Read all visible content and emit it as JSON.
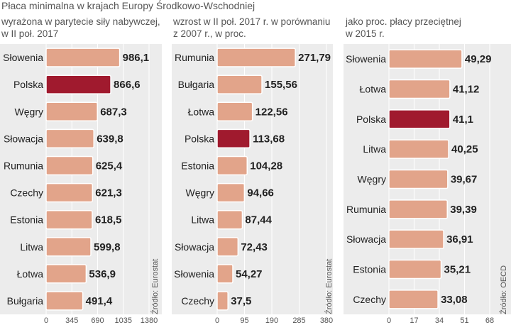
{
  "title": "Płaca minimalna w krajach Europy Środkowo-Wschodniej",
  "colors": {
    "bar": "#e2a48a",
    "highlight": "#a01a2e",
    "panel": "#ececec"
  },
  "chart_data": [
    {
      "type": "bar",
      "subtitle": "wyrażona w parytecie siły nabywczej,\nw II poł. 2017",
      "categories": [
        "Słowenia",
        "Polska",
        "Węgry",
        "Słowacja",
        "Rumunia",
        "Czechy",
        "Estonia",
        "Litwa",
        "Łotwa",
        "Bułgaria"
      ],
      "values": [
        986.1,
        866.6,
        687.3,
        639.8,
        625.4,
        621.3,
        618.5,
        599.8,
        536.9,
        491.4
      ],
      "value_labels": [
        "986,1",
        "866,6",
        "687,3",
        "639,8",
        "625,4",
        "621,3",
        "618,5",
        "599,8",
        "536,9",
        "491,4"
      ],
      "highlight": "Polska",
      "xticks": [
        "0",
        "345",
        "690",
        "1035",
        "1380"
      ],
      "xlim": [
        0,
        1380
      ],
      "source": "Źródło: Eurostat"
    },
    {
      "type": "bar",
      "subtitle": "wzrost w II poł. 2017 r. w porównaniu\nz 2007 r., w proc.",
      "categories": [
        "Rumunia",
        "Bułgaria",
        "Łotwa",
        "Polska",
        "Estonia",
        "Węgry",
        "Litwa",
        "Słowacja",
        "Słowenia",
        "Czechy"
      ],
      "values": [
        271.79,
        155.56,
        122.56,
        113.68,
        104.28,
        94.66,
        87.44,
        72.43,
        54.27,
        37.5
      ],
      "value_labels": [
        "271,79",
        "155,56",
        "122,56",
        "113,68",
        "104,28",
        "94,66",
        "87,44",
        "72,43",
        "54,27",
        "37,5"
      ],
      "highlight": "Polska",
      "xticks": [
        "0",
        "95",
        "190",
        "285",
        "380"
      ],
      "xlim": [
        0,
        380
      ],
      "source": "Źródło: Eurostat"
    },
    {
      "type": "bar",
      "subtitle": "jako proc. płacy przeciętnej\nw 2015 r.",
      "categories": [
        "Słowenia",
        "Łotwa",
        "Polska",
        "Litwa",
        "Węgry",
        "Rumunia",
        "Słowacja",
        "Estonia",
        "Czechy"
      ],
      "values": [
        49.29,
        41.12,
        41.1,
        40.25,
        39.67,
        39.39,
        36.91,
        35.21,
        33.08
      ],
      "value_labels": [
        "49,29",
        "41,12",
        "41,1",
        "40,25",
        "39,67",
        "39,39",
        "36,91",
        "35,21",
        "33,08"
      ],
      "highlight": "Polska",
      "xticks": [
        "0",
        "17",
        "34",
        "51",
        "68"
      ],
      "xlim": [
        0,
        68
      ],
      "source": "Źródło: OECD"
    }
  ]
}
